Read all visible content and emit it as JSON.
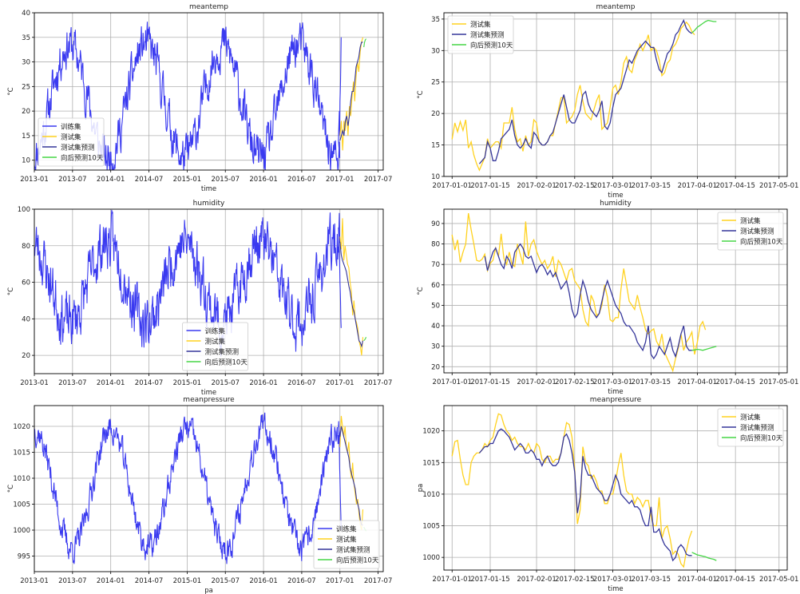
{
  "figure": {
    "legend_labels": [
      "训练集",
      "测试集",
      "测试集预测",
      "向后预测10天"
    ],
    "colors": {
      "train": "#3a3af0",
      "test": "#ffd21f",
      "test_pred": "#35369a",
      "forecast": "#46d646"
    }
  },
  "chart_data": [
    {
      "id": "meantemp-full",
      "type": "line",
      "title": "meantemp",
      "xlabel": "time",
      "ylabel": "°C",
      "x_ticks": [
        "2013-01",
        "2013-07",
        "2014-01",
        "2014-07",
        "2015-01",
        "2015-07",
        "2016-01",
        "2016-07",
        "2017-01",
        "2017-07"
      ],
      "ylim": [
        8,
        40
      ],
      "y_ticks": [
        10,
        15,
        20,
        25,
        30,
        35,
        40
      ],
      "legend": "lower-left",
      "series": [
        {
          "name": "训练集",
          "role": "train",
          "seasonal": {
            "base": 22,
            "amp": 11.5,
            "peak_month": 5.5,
            "noise": 3.5,
            "seed": 11
          },
          "tail": [
            14,
            16,
            18,
            20,
            15,
            22,
            24,
            26,
            30,
            35
          ]
        },
        {
          "name": "测试集",
          "role": "test",
          "values": [
            15,
            18,
            12,
            18,
            16,
            20,
            15,
            21,
            19,
            23,
            26,
            22,
            27,
            30,
            28,
            32,
            34,
            35
          ]
        },
        {
          "name": "测试集预测",
          "role": "test_pred",
          "values": [
            14,
            15,
            16,
            15,
            18,
            19,
            17,
            19,
            22,
            24,
            24,
            26,
            29,
            30,
            31,
            33,
            34,
            34
          ]
        },
        {
          "name": "向后预测10天",
          "role": "forecast",
          "values": [
            33,
            34,
            34.5,
            34.7
          ]
        }
      ]
    },
    {
      "id": "meantemp-zoom",
      "type": "line",
      "title": "meantemp",
      "xlabel": "time",
      "ylabel": "°C",
      "x_ticks": [
        "2017-01-01",
        "2017-01-15",
        "2017-02-01",
        "2017-02-15",
        "2017-03-01",
        "2017-03-15",
        "2017-04-01",
        "2017-04-15",
        "2017-05-01"
      ],
      "ylim": [
        10,
        36
      ],
      "y_ticks": [
        10,
        15,
        20,
        25,
        30,
        35
      ],
      "legend": "upper-left",
      "series": [
        {
          "name": "测试集",
          "role": "test",
          "day_start": 0,
          "values": [
            15.9,
            18.5,
            17.1,
            18.7,
            17.3,
            19.0,
            14.5,
            15.5,
            13.4,
            12.0,
            11.0,
            12.0,
            13.0,
            16.0,
            14.5,
            15.0,
            15.5,
            15.5,
            14.5,
            18.5,
            18.5,
            18.5,
            21.0,
            17.5,
            15.5,
            16.0,
            14.0,
            16.5,
            15.0,
            15.5,
            19.0,
            18.5,
            15.5,
            15.0,
            15.0,
            15.5,
            16.5,
            16.5,
            18.5,
            20.5,
            22.5,
            22.5,
            18.5,
            19.0,
            19.5,
            20.5,
            23.0,
            24.5,
            22.0,
            20.0,
            19.5,
            19.0,
            20.5,
            22.0,
            23.0,
            17.5,
            18.0,
            18.5,
            21.0,
            24.0,
            24.5,
            23.0,
            25.0,
            28.0,
            29.0,
            27.0,
            26.5,
            28.5,
            29.5,
            31.0,
            30.0,
            31.0,
            32.5,
            30.0,
            30.5,
            30.0,
            28.5,
            26.0,
            26.5,
            28.0,
            28.5,
            30.5,
            31.0,
            32.0,
            33.5,
            34.0,
            34.5,
            34.0,
            33.0,
            32.5
          ]
        },
        {
          "name": "测试集预测",
          "role": "test_pred",
          "day_start": 10,
          "values": [
            12.0,
            12.5,
            13.0,
            15.5,
            14.5,
            12.5,
            12.5,
            14.0,
            16.0,
            16.5,
            17.0,
            17.5,
            19.0,
            16.5,
            15.0,
            14.5,
            15.0,
            16.0,
            15.0,
            14.5,
            17.0,
            16.5,
            15.5,
            15.0,
            15.0,
            15.5,
            16.5,
            17.0,
            18.5,
            20.0,
            21.5,
            23.0,
            21.0,
            19.0,
            18.5,
            18.5,
            19.5,
            20.5,
            23.0,
            23.5,
            21.5,
            20.5,
            20.0,
            19.5,
            20.5,
            22.0,
            18.0,
            17.5,
            18.5,
            21.0,
            23.0,
            23.5,
            24.0,
            25.5,
            27.0,
            28.5,
            28.0,
            29.0,
            30.0,
            30.5,
            31.0,
            31.5,
            31.0,
            30.5,
            30.5,
            28.5,
            27.0,
            26.5,
            28.0,
            29.5,
            30.0,
            31.0,
            32.5,
            33.0,
            34.0,
            34.8,
            33.5,
            33.0,
            32.7
          ]
        },
        {
          "name": "向后预测10天",
          "role": "forecast",
          "day_start": 88,
          "values": [
            32.8,
            33.2,
            33.7,
            34.0,
            34.3,
            34.6,
            34.8,
            34.7,
            34.6,
            34.6
          ]
        }
      ]
    },
    {
      "id": "humidity-full",
      "type": "line",
      "title": "humidity",
      "xlabel": "time",
      "ylabel": "°C",
      "x_ticks": [
        "2013-01",
        "2013-07",
        "2014-01",
        "2014-07",
        "2015-01",
        "2015-07",
        "2016-01",
        "2016-07",
        "2017-01",
        "2017-07"
      ],
      "ylim": [
        10,
        100
      ],
      "y_ticks": [
        20,
        40,
        60,
        80,
        100
      ],
      "legend": "lower-center",
      "series": [
        {
          "name": "训练集",
          "role": "train",
          "seasonal": {
            "base": 60,
            "amp": -22,
            "peak_month": 5.5,
            "noise": 12,
            "seed": 23
          },
          "tail": [
            90,
            85,
            80,
            75,
            70,
            60,
            55,
            50,
            40,
            35
          ]
        },
        {
          "name": "测试集",
          "role": "test",
          "values": [
            85,
            78,
            95,
            72,
            80,
            75,
            70,
            68,
            60,
            55,
            42,
            50,
            40,
            38,
            35,
            28,
            25,
            20,
            30
          ]
        },
        {
          "name": "测试集预测",
          "role": "test_pred",
          "values": [
            82,
            75,
            72,
            70,
            68,
            66,
            62,
            58,
            55,
            50,
            46,
            44,
            40,
            36,
            32,
            28,
            27,
            25,
            28
          ]
        },
        {
          "name": "向后预测10天",
          "role": "forecast",
          "values": [
            28,
            28.5,
            29,
            30
          ]
        }
      ]
    },
    {
      "id": "humidity-zoom",
      "type": "line",
      "title": "humidity",
      "xlabel": "time",
      "ylabel": "°C",
      "x_ticks": [
        "2017-01-01",
        "2017-01-15",
        "2017-02-01",
        "2017-02-15",
        "2017-03-01",
        "2017-03-15",
        "2017-04-01",
        "2017-04-15",
        "2017-05-01"
      ],
      "ylim": [
        17,
        97
      ],
      "y_ticks": [
        20,
        30,
        40,
        50,
        60,
        70,
        80,
        90
      ],
      "legend": "upper-right",
      "series": [
        {
          "name": "测试集",
          "role": "test",
          "day_start": 0,
          "values": [
            84.5,
            77.0,
            82.0,
            71.0,
            76.0,
            80.0,
            95.0,
            87.0,
            80.0,
            72.0,
            71.5,
            72.5,
            75.0,
            67.0,
            70.5,
            72.0,
            78.0,
            74.0,
            85.0,
            73.0,
            70.0,
            76.0,
            70.0,
            69.0,
            80.0,
            75.0,
            70.0,
            91.0,
            74.0,
            80.0,
            82.0,
            76.5,
            73.0,
            70.0,
            72.0,
            68.0,
            70.0,
            74.0,
            64.0,
            72.0,
            70.0,
            66.0,
            62.0,
            67.0,
            68.0,
            62.0,
            60.0,
            58.0,
            48.0,
            42.0,
            40.0,
            55.0,
            52.0,
            45.0,
            46.0,
            50.0,
            60.0,
            54.0,
            43.0,
            42.0,
            44.0,
            44.0,
            58.0,
            68.0,
            60.0,
            52.0,
            50.0,
            48.0,
            55.0,
            49.0,
            44.0,
            38.0,
            36.0,
            37.5,
            38.5,
            32.5,
            30.0,
            36.0,
            27.0,
            24.0,
            21.0,
            18.0,
            24.0,
            29.0,
            36.0,
            28.0,
            32.0,
            34.0,
            37.0,
            26.0,
            32.0,
            40.0,
            42.0,
            38.0
          ]
        },
        {
          "name": "测试集预测",
          "role": "test_pred",
          "day_start": 12,
          "values": [
            74.0,
            67.0,
            72.0,
            76.0,
            78.0,
            74.0,
            70.0,
            68.0,
            74.0,
            72.0,
            68.0,
            76.0,
            78.0,
            80.0,
            78.0,
            74.0,
            73.0,
            74.0,
            70.0,
            66.0,
            69.0,
            70.0,
            68.0,
            65.0,
            67.0,
            64.0,
            66.0,
            62.0,
            58.0,
            60.0,
            62.0,
            56.0,
            48.0,
            44.0,
            46.0,
            55.0,
            62.0,
            58.0,
            52.0,
            48.0,
            46.0,
            44.0,
            46.0,
            52.0,
            58.0,
            62.0,
            58.0,
            54.0,
            50.0,
            48.0,
            46.0,
            42.0,
            40.0,
            40.0,
            38.0,
            36.0,
            32.0,
            30.0,
            28.0,
            32.0,
            40.0,
            26.0,
            24.0,
            26.0,
            30.0,
            28.0,
            26.0,
            30.0,
            34.0,
            28.0,
            25.0,
            30.0,
            36.0,
            40.0,
            30.0,
            28.0,
            28.0
          ]
        },
        {
          "name": "向后预测10天",
          "role": "forecast",
          "day_start": 88,
          "values": [
            28.0,
            28.2,
            28.5,
            28.3,
            28.0,
            28.4,
            28.8,
            29.2,
            29.6,
            30.0
          ]
        }
      ]
    },
    {
      "id": "meanpressure-full",
      "type": "line",
      "title": "meanpressure",
      "xlabel": "pa",
      "ylabel": "°C",
      "x_ticks": [
        "2013-01",
        "2013-07",
        "2014-01",
        "2014-07",
        "2015-01",
        "2015-07",
        "2016-01",
        "2016-07",
        "2017-01",
        "2017-07"
      ],
      "ylim": [
        992,
        1024
      ],
      "y_ticks": [
        995,
        1000,
        1005,
        1010,
        1015,
        1020
      ],
      "legend": "lower-right",
      "series": [
        {
          "name": "训练集",
          "role": "train",
          "seasonal": {
            "base": 1008,
            "amp": -11.5,
            "peak_month": 6,
            "noise": 2.2,
            "seed": 37
          },
          "tail": [
            1020,
            1021,
            1018,
            1016,
            1012,
            1010,
            1007,
            1005,
            1003,
            1000
          ]
        },
        {
          "name": "测试集",
          "role": "test",
          "values": [
            1016,
            1022,
            1020,
            1018,
            1020,
            1016,
            1015,
            1017,
            1012,
            1010,
            1013,
            1009,
            1007,
            1005,
            1006,
            1003,
            1001,
            1000,
            1004
          ]
        },
        {
          "name": "测试集预测",
          "role": "test_pred",
          "values": [
            1018,
            1020,
            1019,
            1018,
            1017,
            1016,
            1015,
            1014,
            1012,
            1011,
            1010,
            1009,
            1008,
            1006,
            1005,
            1004,
            1002,
            1001,
            1001
          ]
        },
        {
          "name": "向后预测10天",
          "role": "forecast",
          "values": [
            1000.6,
            1000.3,
            1000.1,
            999.8
          ]
        }
      ]
    },
    {
      "id": "meanpressure-zoom",
      "type": "line",
      "title": "meanpressure",
      "xlabel": "time",
      "ylabel": "pa",
      "x_ticks": [
        "2017-01-01",
        "2017-01-15",
        "2017-02-01",
        "2017-02-15",
        "2017-03-01",
        "2017-03-15",
        "2017-04-01",
        "2017-04-15",
        "2017-05-01"
      ],
      "ylim": [
        998,
        1024
      ],
      "y_ticks": [
        1000,
        1005,
        1010,
        1015,
        1020
      ],
      "legend": "upper-right",
      "series": [
        {
          "name": "测试集",
          "role": "test",
          "day_start": 0,
          "values": [
            1016.0,
            1018.3,
            1018.5,
            1015.5,
            1013.0,
            1011.5,
            1011.5,
            1015.0,
            1016.0,
            1016.5,
            1016.5,
            1017.0,
            1018.0,
            1017.5,
            1018.5,
            1019.0,
            1021.0,
            1022.7,
            1022.5,
            1021.0,
            1020.0,
            1019.5,
            1018.5,
            1019.0,
            1018.0,
            1017.5,
            1017.5,
            1017.0,
            1018.0,
            1017.0,
            1016.5,
            1018.0,
            1017.5,
            1015.5,
            1015.0,
            1016.0,
            1016.0,
            1015.0,
            1015.5,
            1015.5,
            1016.5,
            1019.0,
            1021.3,
            1021.0,
            1019.0,
            1014.0,
            1005.3,
            1007.5,
            1017.5,
            1015.0,
            1014.5,
            1012.5,
            1013.0,
            1012.0,
            1010.5,
            1010.5,
            1008.5,
            1008.5,
            1010.0,
            1010.0,
            1012.0,
            1014.5,
            1016.5,
            1013.0,
            1010.5,
            1010.0,
            1010.0,
            1008.5,
            1009.5,
            1009.0,
            1008.0,
            1009.0,
            1009.0,
            1006.5,
            1005.0,
            1005.0,
            1009.5,
            1003.0,
            1004.5,
            1005.0,
            1003.0,
            1000.5,
            1001.0,
            1000.5,
            999.0,
            998.5,
            1001.0,
            1003.0,
            1004.2
          ]
        },
        {
          "name": "测试集预测",
          "role": "test_pred",
          "day_start": 10,
          "values": [
            1016.5,
            1017.0,
            1017.5,
            1017.5,
            1018.0,
            1018.0,
            1019.0,
            1020.0,
            1020.3,
            1020.0,
            1019.5,
            1019.0,
            1018.0,
            1017.0,
            1017.5,
            1018.0,
            1017.5,
            1016.5,
            1016.5,
            1017.0,
            1016.5,
            1015.5,
            1015.5,
            1014.5,
            1015.5,
            1016.0,
            1015.0,
            1014.5,
            1014.5,
            1015.0,
            1016.5,
            1019.0,
            1019.5,
            1018.5,
            1016.5,
            1013.5,
            1007.0,
            1009.5,
            1016.0,
            1014.0,
            1013.0,
            1013.0,
            1012.0,
            1011.0,
            1010.5,
            1010.0,
            1009.0,
            1009.0,
            1010.0,
            1011.5,
            1013.0,
            1012.0,
            1010.0,
            1009.5,
            1009.0,
            1008.5,
            1009.0,
            1008.0,
            1008.0,
            1007.5,
            1006.0,
            1005.0,
            1005.0,
            1008.0,
            1004.0,
            1004.0,
            1004.5,
            1003.0,
            1002.0,
            1001.5,
            1001.0,
            999.5,
            1000.0,
            1001.5,
            1002.0,
            1001.5,
            1000.5,
            1000.3,
            1000.3
          ]
        },
        {
          "name": "向后预测10天",
          "role": "forecast",
          "day_start": 88,
          "values": [
            1000.8,
            1000.6,
            1000.4,
            1000.3,
            1000.2,
            1000.1,
            999.9,
            999.8,
            999.7,
            999.5
          ]
        }
      ]
    }
  ]
}
